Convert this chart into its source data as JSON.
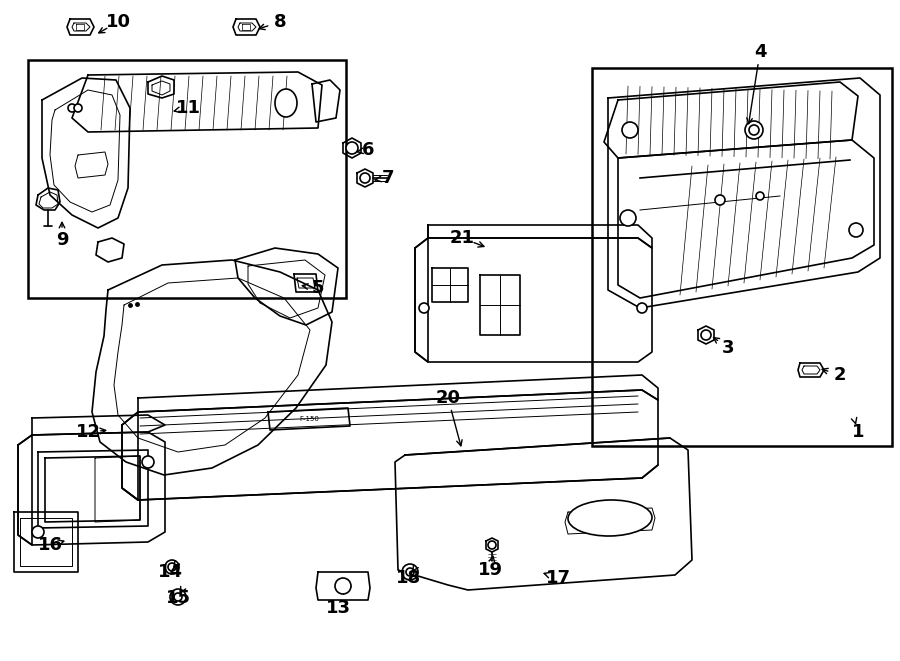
{
  "bg_color": "#ffffff",
  "line_color": "#000000",
  "figsize": [
    9.0,
    6.61
  ],
  "dpi": 100,
  "callouts": [
    [
      1,
      858,
      432,
      856,
      425
    ],
    [
      2,
      840,
      375,
      818,
      368
    ],
    [
      3,
      728,
      348,
      710,
      335
    ],
    [
      4,
      760,
      52,
      748,
      128
    ],
    [
      5,
      318,
      288,
      298,
      285
    ],
    [
      6,
      368,
      150,
      356,
      152
    ],
    [
      7,
      388,
      178,
      374,
      180
    ],
    [
      8,
      280,
      22,
      255,
      30
    ],
    [
      9,
      62,
      240,
      62,
      218
    ],
    [
      10,
      118,
      22,
      95,
      35
    ],
    [
      11,
      188,
      108,
      170,
      112
    ],
    [
      12,
      88,
      432,
      110,
      430
    ],
    [
      13,
      338,
      608,
      338,
      598
    ],
    [
      14,
      170,
      572,
      173,
      568
    ],
    [
      15,
      178,
      598,
      180,
      594
    ],
    [
      16,
      50,
      545,
      68,
      540
    ],
    [
      17,
      558,
      578,
      540,
      572
    ],
    [
      18,
      408,
      578,
      412,
      572
    ],
    [
      19,
      490,
      570,
      494,
      552
    ],
    [
      20,
      448,
      398,
      462,
      450
    ],
    [
      21,
      462,
      238,
      488,
      248
    ]
  ]
}
